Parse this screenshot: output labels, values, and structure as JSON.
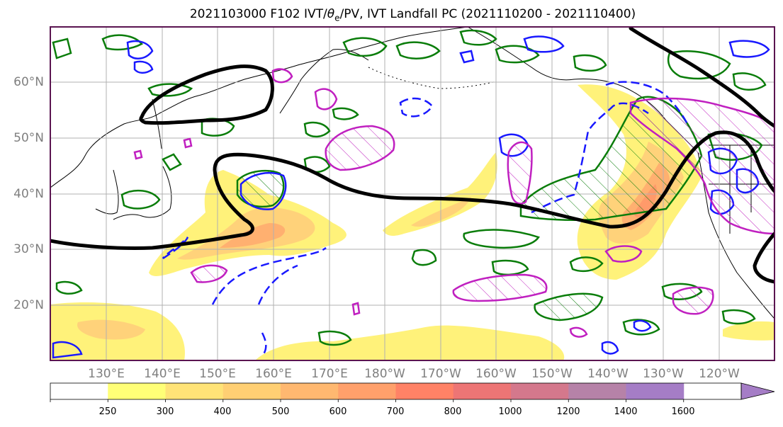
{
  "title": {
    "prefix": "2021103000 F102 IVT/",
    "theta": "θ",
    "theta_sub": "e",
    "suffix": "/PV, IVT Landfall PC (2021110200 - 2021110400)"
  },
  "map": {
    "lat_labels": [
      "60°N",
      "50°N",
      "40°N",
      "30°N",
      "20°N"
    ],
    "lon_labels": [
      "130°E",
      "140°E",
      "150°E",
      "160°E",
      "170°E",
      "180°W",
      "170°W",
      "160°W",
      "150°W",
      "140°W",
      "130°W",
      "120°W"
    ],
    "frame_color": "#5a1450",
    "grid_color": "#b0b0b0"
  },
  "colorbar": {
    "ticks": [
      "250",
      "300",
      "400",
      "500",
      "600",
      "700",
      "800",
      "1000",
      "1200",
      "1400",
      "1600"
    ],
    "colors": [
      "#ffff77",
      "#ffe377",
      "#ffcf73",
      "#ffb870",
      "#ffa06b",
      "#ff8266",
      "#ed7575",
      "#d4788c",
      "#b682a8",
      "#a57dc6"
    ],
    "extend": "max"
  },
  "contour_colors": {
    "ivt_fill_light": "#fff27a",
    "ivt_fill_mid": "#ffd27a",
    "ivt_fill_strong": "#ffb070",
    "theta_e": "#0a7d0a",
    "pv_positive": "#1919ff",
    "pc": "#c020c0",
    "jet": "#000000"
  }
}
